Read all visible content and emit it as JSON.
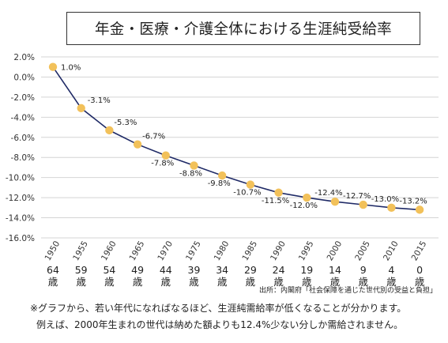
{
  "chart_data": {
    "type": "line",
    "title": "年金・医療・介護全体における生涯純受給率",
    "xlabel": "",
    "ylabel": "",
    "x": [
      "1950",
      "1955",
      "1960",
      "1965",
      "1970",
      "1975",
      "1980",
      "1985",
      "1990",
      "1995",
      "2000",
      "2005",
      "2010",
      "2015"
    ],
    "ages": [
      "64歳",
      "59歳",
      "54歳",
      "49歳",
      "44歳",
      "39歳",
      "34歳",
      "29歳",
      "24歳",
      "19歳",
      "14歳",
      "9歳",
      "4歳",
      "0歳"
    ],
    "series": [
      {
        "values": [
          1.0,
          -3.1,
          -5.3,
          -6.7,
          -7.8,
          -8.8,
          -9.8,
          -10.7,
          -11.5,
          -12.0,
          -12.4,
          -12.7,
          -13.0,
          -13.2
        ],
        "labels": [
          "1.0%",
          "-3.1%",
          "-5.3%",
          "-6.7%",
          "-7.8%",
          "-8.8%",
          "-9.8%",
          "-10.7%",
          "-11.5%",
          "-12.0%",
          "-12.4%",
          "-12.7%",
          "-13.0%",
          "-13.2%"
        ]
      }
    ],
    "yticks": [
      2.0,
      0.0,
      -2.0,
      -4.0,
      -6.0,
      -8.0,
      -10.0,
      -12.0,
      -14.0,
      -16.0
    ],
    "ytick_labels": [
      "2.0%",
      "0.0%",
      "-2.0%",
      "-4.0%",
      "-6.0%",
      "-8.0%",
      "-10.0%",
      "-12.0%",
      "-14.0%",
      "-16.0%"
    ],
    "ylim": [
      -16,
      2
    ],
    "grid": true,
    "colors": {
      "line": "#1f2a66",
      "marker": "#f2c15a",
      "grid": "#d4d4d4"
    }
  },
  "source": "出所：内閣府「社会保障を通じた世代別の受益と負担」",
  "notes": [
    "※グラフから、若い年代になればなるほど、生涯純需給率が低くなることが分かります。",
    "例えば、2000年生まれの世代は納めた額よりも12.4%少ない分しか需給されません。"
  ]
}
